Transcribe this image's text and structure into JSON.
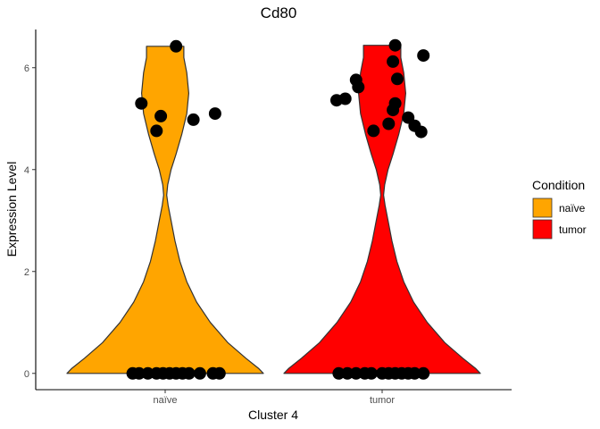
{
  "chart_data": {
    "type": "violin",
    "title": "Cd80",
    "xlabel": "Cluster 4",
    "ylabel": "Expression Level",
    "ylim": [
      -0.32,
      6.75
    ],
    "y_ticks": [
      0,
      2,
      4,
      6
    ],
    "categories": [
      "naïve",
      "tumor"
    ],
    "legend": {
      "title": "Condition",
      "position": "right",
      "entries": [
        "naïve",
        "tumor"
      ]
    },
    "series": [
      {
        "name": "naïve",
        "color": "#FFA500",
        "density_max": 6.42,
        "points": [
          [
            0.85,
            0
          ],
          [
            0.88,
            0
          ],
          [
            0.92,
            0
          ],
          [
            0.96,
            0
          ],
          [
            0.99,
            0
          ],
          [
            1.02,
            0
          ],
          [
            1.05,
            0
          ],
          [
            1.08,
            0
          ],
          [
            1.11,
            0
          ],
          [
            1.16,
            0
          ],
          [
            1.22,
            0
          ],
          [
            1.25,
            0
          ],
          [
            0.89,
            5.3
          ],
          [
            0.96,
            4.76
          ],
          [
            0.98,
            5.05
          ],
          [
            1.05,
            6.42
          ],
          [
            1.13,
            4.98
          ],
          [
            1.23,
            5.1
          ]
        ]
      },
      {
        "name": "tumor",
        "color": "#FF0000",
        "density_max": 6.44,
        "points": [
          [
            1.8,
            0
          ],
          [
            1.84,
            0
          ],
          [
            1.88,
            0
          ],
          [
            1.92,
            0
          ],
          [
            1.95,
            0
          ],
          [
            2.0,
            0
          ],
          [
            2.03,
            0
          ],
          [
            2.06,
            0
          ],
          [
            2.09,
            0
          ],
          [
            2.12,
            0
          ],
          [
            2.15,
            0
          ],
          [
            2.19,
            0
          ],
          [
            1.79,
            5.36
          ],
          [
            1.83,
            5.39
          ],
          [
            1.88,
            5.76
          ],
          [
            1.89,
            5.62
          ],
          [
            1.96,
            4.76
          ],
          [
            2.03,
            4.9
          ],
          [
            2.05,
            5.17
          ],
          [
            2.05,
            6.12
          ],
          [
            2.06,
            6.44
          ],
          [
            2.06,
            5.3
          ],
          [
            2.07,
            5.78
          ],
          [
            2.12,
            5.02
          ],
          [
            2.15,
            4.86
          ],
          [
            2.18,
            4.74
          ],
          [
            2.19,
            6.24
          ]
        ]
      }
    ]
  }
}
